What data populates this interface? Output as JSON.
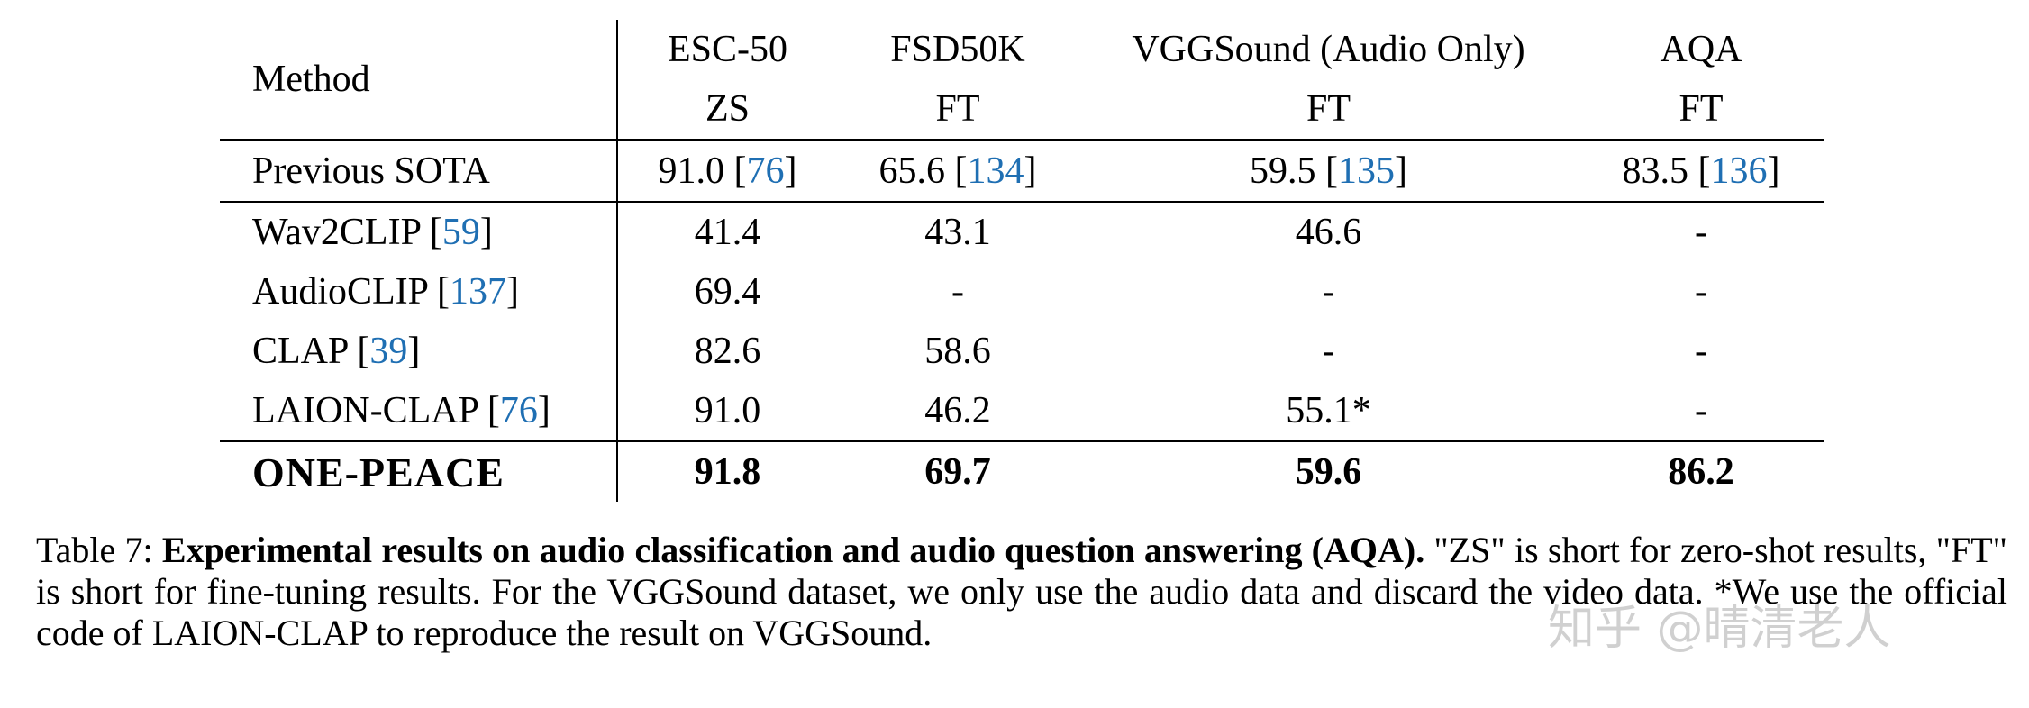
{
  "table": {
    "header": {
      "method": "Method",
      "columns": [
        {
          "name": "ESC-50",
          "setting": "ZS"
        },
        {
          "name": "FSD50K",
          "setting": "FT"
        },
        {
          "name": "VGGSound (Audio Only)",
          "setting": "FT"
        },
        {
          "name": "AQA",
          "setting": "FT"
        }
      ]
    },
    "sota": {
      "method": "Previous SOTA",
      "cells": [
        {
          "value": "91.0",
          "ref": "76"
        },
        {
          "value": "65.6",
          "ref": "134"
        },
        {
          "value": "59.5",
          "ref": "135"
        },
        {
          "value": "83.5",
          "ref": "136"
        }
      ]
    },
    "rows": [
      {
        "method": "Wav2CLIP",
        "ref": "59",
        "cells": [
          "41.4",
          "43.1",
          "46.6",
          "-"
        ]
      },
      {
        "method": "AudioCLIP",
        "ref": "137",
        "cells": [
          "69.4",
          "-",
          "-",
          "-"
        ]
      },
      {
        "method": "CLAP",
        "ref": "39",
        "cells": [
          "82.6",
          "58.6",
          "-",
          "-"
        ]
      },
      {
        "method": "LAION-CLAP",
        "ref": "76",
        "cells": [
          "91.0",
          "46.2",
          "55.1*",
          "-"
        ]
      }
    ],
    "ours": {
      "method": "ONE-PEACE",
      "cells": [
        "91.8",
        "69.7",
        "59.6",
        "86.2"
      ]
    },
    "colors": {
      "reference_link": "#1f6fb3"
    }
  },
  "caption": {
    "label": "Table 7:",
    "title": "Experimental results on audio classification and audio question answering (AQA).",
    "body": "\"ZS\" is short for zero-shot results, \"FT\" is short for fine-tuning results. For the VGGSound dataset, we only use the audio data and discard the video data. *We use the official code of LAION-CLAP to reproduce the result on VGGSound."
  },
  "watermark": "知乎 @晴清老人"
}
